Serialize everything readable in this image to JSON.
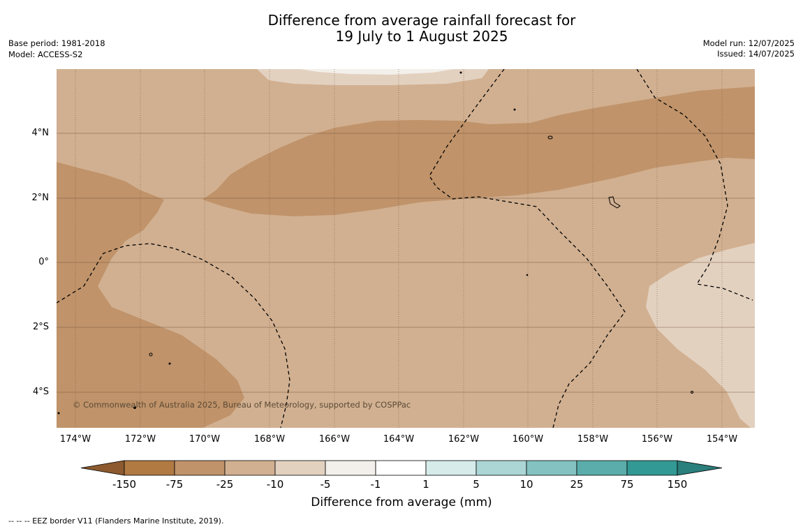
{
  "title": {
    "line1": "Difference from average rainfall forecast for",
    "line2": "19 July to 1 August 2025"
  },
  "meta_left": {
    "base_period": "Base period: 1981-2018",
    "model": "Model: ACCESS-S2"
  },
  "meta_right": {
    "model_run": "Model run: 12/07/2025",
    "issued": "Issued: 14/07/2025"
  },
  "map": {
    "lat_labels": [
      "4°N",
      "2°N",
      "0°",
      "2°S",
      "4°S"
    ],
    "lon_labels": [
      "174°W",
      "172°W",
      "170°W",
      "168°W",
      "166°W",
      "164°W",
      "162°W",
      "160°W",
      "158°W",
      "156°W",
      "154°W"
    ],
    "copyright": "© Commonwealth of Australia 2025, Bureau of Meteorology, supported by COSPPac",
    "colors": {
      "cat_minus25_minus10": "#d1b091",
      "cat_minus75_minus25": "#c0936a",
      "cat_minus10_minus5": "#e3d1c0",
      "cat_minus5_minus1": "#f3efea",
      "grid_line": "#7a5a3c",
      "eez_border": "#000000"
    }
  },
  "colorbar": {
    "title": "Difference from average (mm)",
    "tick_labels": [
      "-150",
      "-75",
      "-25",
      "-10",
      "-5",
      "-1",
      "1",
      "5",
      "10",
      "25",
      "75",
      "150"
    ],
    "colors": [
      "#8c5a2e",
      "#b07a42",
      "#c0936a",
      "#d1b091",
      "#e3d1c0",
      "#f3efea",
      "#ffffff",
      "#d6ebea",
      "#abd6d5",
      "#83c2c0",
      "#5aadaa",
      "#339995",
      "#2b7f7c"
    ]
  },
  "footnote": "--  --  -- EEZ border V11 (Flanders Marine Institute, 2019)."
}
